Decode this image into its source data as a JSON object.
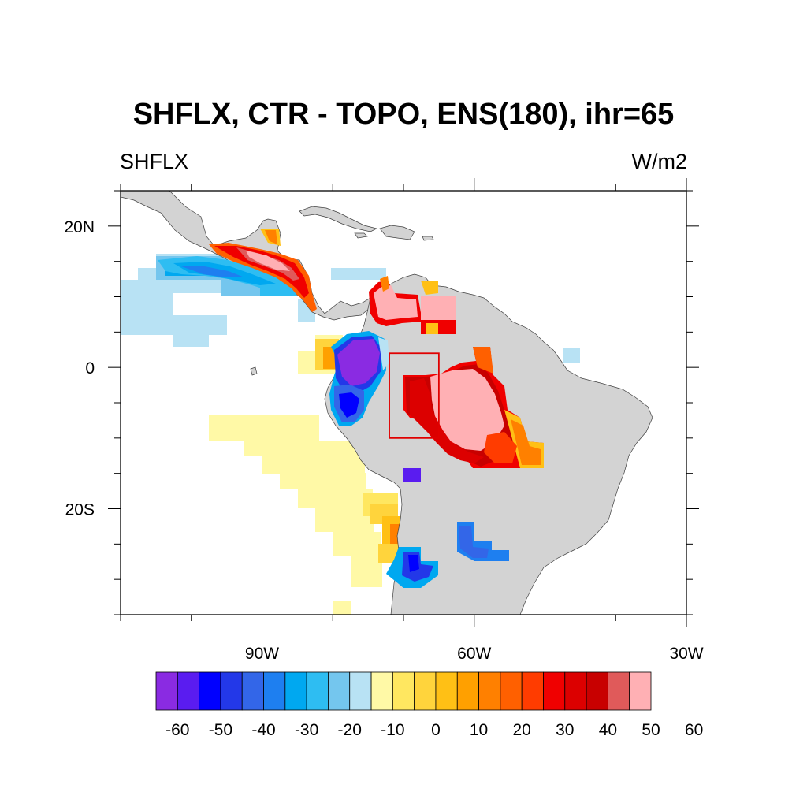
{
  "title": "SHFLX, CTR - TOPO, ENS(180), ihr=65",
  "subtitle_left": "SHFLX",
  "subtitle_right": "W/m2",
  "map": {
    "lon_range": [
      -110,
      -30
    ],
    "lat_range": [
      -35,
      25
    ],
    "lon_tick_labels": [
      {
        "lon": -90,
        "text": "90W"
      },
      {
        "lon": -60,
        "text": "60W"
      },
      {
        "lon": -30,
        "text": "30W"
      }
    ],
    "lat_tick_labels": [
      {
        "lat": 20,
        "text": "20N"
      },
      {
        "lat": 0,
        "text": "0"
      },
      {
        "lat": -20,
        "text": "20S"
      }
    ],
    "land_color": "#d3d3d3",
    "highlight_box": {
      "lon_min": -72,
      "lon_max": -65,
      "lat_min": -10,
      "lat_max": 2,
      "color": "#e00000"
    }
  },
  "colorbar": {
    "colors": [
      "#8a2be2",
      "#5a1cf0",
      "#0000ff",
      "#2338e8",
      "#3366e8",
      "#1e7ff0",
      "#00a8f0",
      "#2ebdf2",
      "#74c6ee",
      "#b8e2f4",
      "#fff9a6",
      "#ffe760",
      "#ffd43c",
      "#ffc015",
      "#ffa000",
      "#ff8000",
      "#ff6000",
      "#ff3c00",
      "#f00000",
      "#dc0000",
      "#c80000",
      "#e05a5a",
      "#ffb0b4"
    ],
    "labels": [
      "-60",
      "-50",
      "-40",
      "-30",
      "-20",
      "-10",
      "0",
      "10",
      "20",
      "30",
      "40",
      "50",
      "60"
    ]
  }
}
